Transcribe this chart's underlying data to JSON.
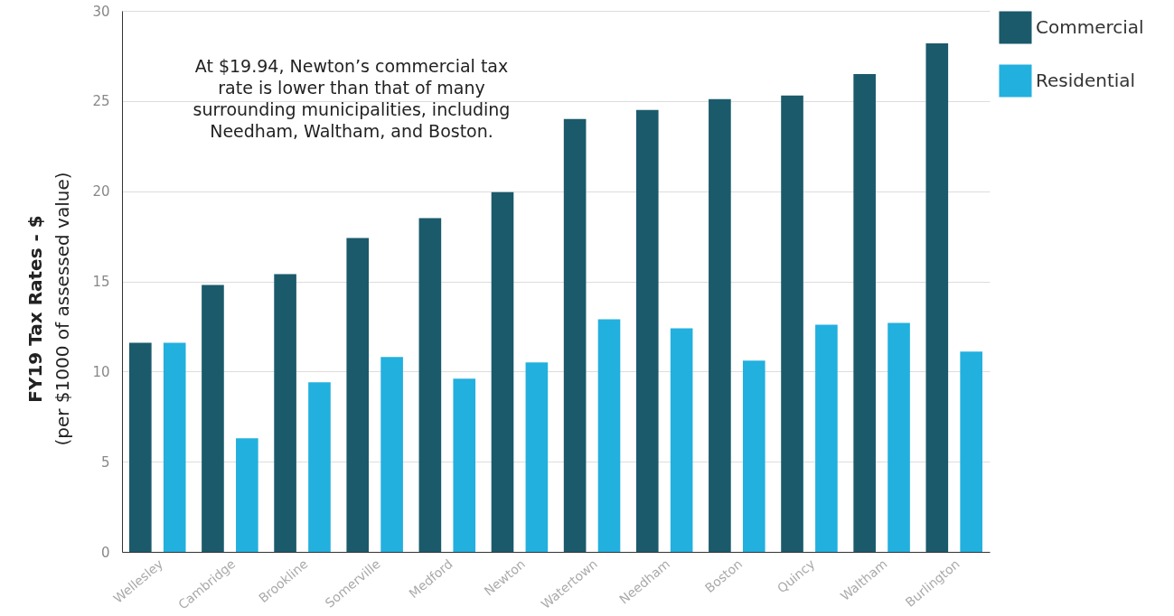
{
  "chart_data": {
    "type": "bar",
    "ylabel": "FY19 Tax Rates - $ (per $1000 of assessed value)",
    "categories": [
      "Wellesley",
      "Cambridge",
      "Brookline",
      "Somerville",
      "Medford",
      "Newton",
      "Watertown",
      "Needham",
      "Boston",
      "Quincy",
      "Waltham",
      "Burlington"
    ],
    "series": [
      {
        "name": "Commercial",
        "color": "#1a5a6b",
        "values": [
          11.6,
          14.8,
          15.4,
          17.4,
          18.5,
          19.94,
          24.0,
          24.5,
          25.1,
          25.3,
          26.5,
          28.2
        ]
      },
      {
        "name": "Residential",
        "color": "#22b0de",
        "values": [
          11.6,
          6.3,
          9.4,
          10.8,
          9.6,
          10.5,
          12.9,
          12.4,
          10.6,
          12.6,
          12.7,
          11.1
        ]
      }
    ],
    "ylim": [
      0,
      30
    ],
    "yticks": [
      0,
      5,
      10,
      15,
      20,
      25,
      30
    ],
    "grid": "y",
    "legend": "right",
    "annotations": [
      "At $19.94, Newton’s commercial tax rate is lower than that of many surrounding municipalities, including Needham, Waltham, and Boston."
    ]
  }
}
